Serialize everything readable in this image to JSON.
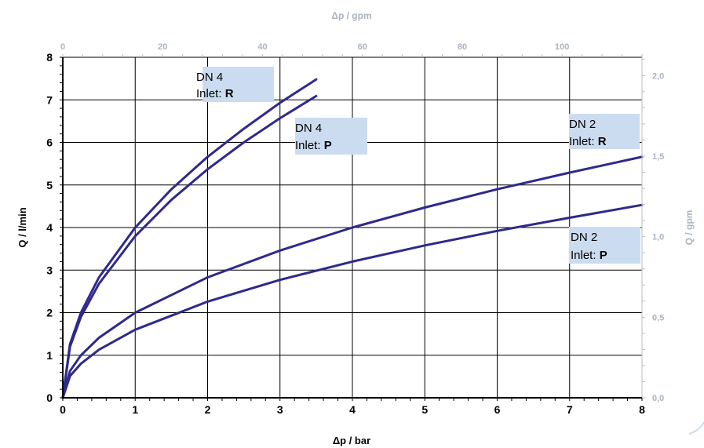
{
  "chart_data": {
    "type": "line",
    "xlabel": "Δp / bar",
    "ylabel": "Q / l/min",
    "x2label": "Δp / gpm",
    "y2label": "Q / gpm",
    "xlim": [
      0,
      8
    ],
    "ylim": [
      0,
      8
    ],
    "x2lim": [
      0,
      116
    ],
    "y2lim": [
      0,
      2.1134
    ],
    "x_ticks": [
      "0",
      "1",
      "2",
      "3",
      "4",
      "5",
      "6",
      "7",
      "8"
    ],
    "y_ticks": [
      "0",
      "1",
      "2",
      "3",
      "4",
      "5",
      "6",
      "7",
      "8"
    ],
    "x2_ticks": [
      {
        "value": 0,
        "label": "0"
      },
      {
        "value": 20,
        "label": "20"
      },
      {
        "value": 40,
        "label": "40"
      },
      {
        "value": 60,
        "label": "60"
      },
      {
        "value": 80,
        "label": "80"
      },
      {
        "value": 100,
        "label": "100"
      }
    ],
    "y2_ticks": [
      {
        "value": 0.0,
        "label": "0,0"
      },
      {
        "value": 0.5,
        "label": "0,5"
      },
      {
        "value": 1.0,
        "label": "1,0"
      },
      {
        "value": 1.5,
        "label": "1,5"
      },
      {
        "value": 2.0,
        "label": "2,0"
      }
    ],
    "grid": true,
    "series_color": "#2e2a8c",
    "box_color": "#ccdcf0",
    "series": [
      {
        "id": "dn4-r",
        "x": [
          0,
          0.1,
          0.25,
          0.5,
          1,
          1.5,
          2,
          2.5,
          3,
          3.5
        ],
        "y": [
          0,
          1.26,
          2.0,
          2.83,
          4.0,
          4.9,
          5.66,
          6.32,
          6.93,
          7.48
        ]
      },
      {
        "id": "dn4-p",
        "x": [
          0,
          0.1,
          0.25,
          0.5,
          1,
          1.5,
          2,
          2.5,
          3,
          3.5
        ],
        "y": [
          0,
          1.2,
          1.9,
          2.68,
          3.8,
          4.65,
          5.37,
          6.0,
          6.57,
          7.09
        ]
      },
      {
        "id": "dn2-r",
        "x": [
          0,
          0.1,
          0.25,
          0.5,
          1,
          2,
          3,
          4,
          5,
          6,
          7,
          8
        ],
        "y": [
          0,
          0.63,
          1.0,
          1.41,
          2.0,
          2.83,
          3.46,
          4.0,
          4.47,
          4.9,
          5.29,
          5.66
        ]
      },
      {
        "id": "dn2-p",
        "x": [
          0,
          0.1,
          0.25,
          0.5,
          1,
          2,
          3,
          4,
          5,
          6,
          7,
          8
        ],
        "y": [
          0,
          0.51,
          0.8,
          1.13,
          1.6,
          2.26,
          2.77,
          3.2,
          3.58,
          3.92,
          4.23,
          4.53
        ]
      }
    ],
    "annotations": [
      {
        "id": "dn4-r-box",
        "line1": "DN 4",
        "line2_prefix": "Inlet: ",
        "line2_bold": "R"
      },
      {
        "id": "dn4-p-box",
        "line1": "DN 4",
        "line2_prefix": "Inlet: ",
        "line2_bold": "P"
      },
      {
        "id": "dn2-r-box",
        "line1": "DN 2",
        "line2_prefix": "Inlet: ",
        "line2_bold": "R"
      },
      {
        "id": "dn2-p-box",
        "line1": "DN 2",
        "line2_prefix": "Inlet: ",
        "line2_bold": "P"
      }
    ]
  }
}
